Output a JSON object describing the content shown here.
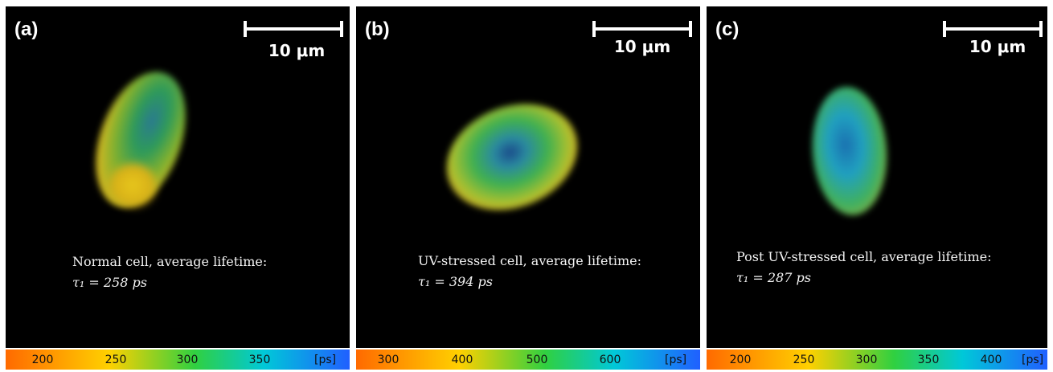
{
  "panels": [
    {
      "label": "(a)",
      "scalebar": "10 μm",
      "annotation_line1": "Normal cell, average lifetime:",
      "annotation_line2": "τ₁ = 258 ps",
      "colorbar": {
        "ticks": [
          "200",
          "250",
          "300",
          "350"
        ],
        "unit": "[ps]",
        "gradient": [
          "#ff6a00",
          "#ffd000",
          "#30d040",
          "#00c8d8",
          "#2060ff"
        ]
      }
    },
    {
      "label": "(b)",
      "scalebar": "10 μm",
      "annotation_line1": "UV-stressed cell, average lifetime:",
      "annotation_line2": "τ₁ = 394 ps",
      "colorbar": {
        "ticks": [
          "300",
          "400",
          "500",
          "600"
        ],
        "unit": "[ps]",
        "gradient": [
          "#ff6a00",
          "#ffd000",
          "#30d040",
          "#00c8d8",
          "#2060ff"
        ]
      }
    },
    {
      "label": "(c)",
      "scalebar": "10 μm",
      "annotation_line1": "Post UV-stressed cell, average lifetime:",
      "annotation_line2": "τ₁ = 287 ps",
      "colorbar": {
        "ticks": [
          "200",
          "250",
          "300",
          "350",
          "400"
        ],
        "unit": "[ps]",
        "gradient": [
          "#ff6a00",
          "#ffd000",
          "#30d040",
          "#00c8d8",
          "#2060ff"
        ]
      }
    }
  ]
}
